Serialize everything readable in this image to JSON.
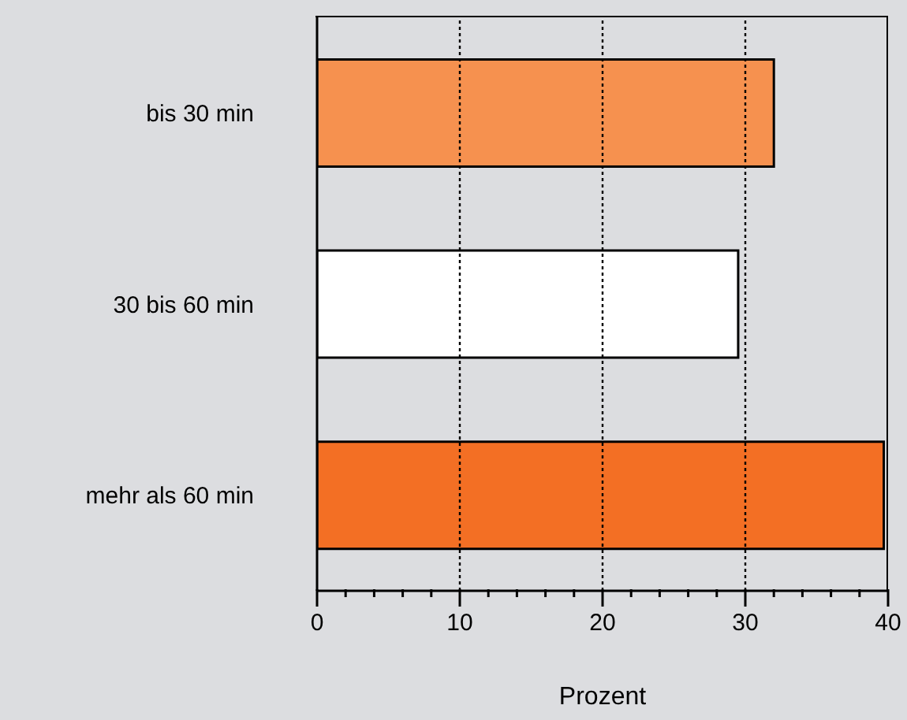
{
  "chart_data": {
    "type": "bar",
    "orientation": "horizontal",
    "xlabel": "Prozent",
    "categories": [
      "bis 30 min",
      "30 bis 60 min",
      "mehr als 60 min"
    ],
    "values": [
      32,
      29.5,
      39.7
    ],
    "colors": [
      "#f6914f",
      "#ffffff",
      "#f36f24"
    ],
    "xlim": [
      0,
      40
    ],
    "xticks": [
      0,
      {
        "value": 2,
        "label": null
      },
      {
        "value": 4,
        "label": null
      },
      {
        "value": 6,
        "label": null
      },
      {
        "value": 8,
        "label": null
      },
      10,
      {
        "value": 12,
        "label": null
      },
      {
        "value": 14,
        "label": null
      },
      {
        "value": 16,
        "label": null
      },
      {
        "value": 18,
        "label": null
      },
      20,
      {
        "value": 22,
        "label": null
      },
      {
        "value": 24,
        "label": null
      },
      {
        "value": 26,
        "label": null
      },
      {
        "value": 28,
        "label": null
      },
      30,
      {
        "value": 32,
        "label": null
      },
      {
        "value": 34,
        "label": null
      },
      {
        "value": 36,
        "label": null
      },
      {
        "value": 38,
        "label": null
      },
      40
    ],
    "grid": "x"
  }
}
